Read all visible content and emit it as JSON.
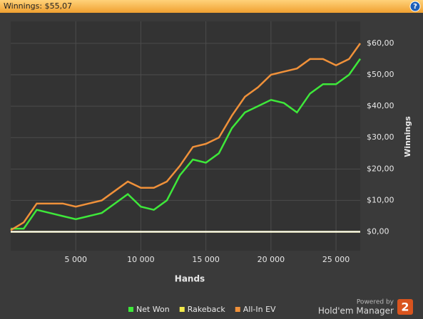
{
  "chart_data": {
    "type": "line",
    "title": "Winnings: $55,07",
    "help": "?",
    "xlabel": "Hands",
    "ylabel": "Winnings",
    "x": [
      0,
      1000,
      2000,
      3000,
      4000,
      5000,
      6000,
      7000,
      8000,
      9000,
      10000,
      11000,
      12000,
      13000,
      14000,
      15000,
      16000,
      17000,
      18000,
      19000,
      20000,
      21000,
      22000,
      23000,
      24000,
      25000,
      26000,
      26860
    ],
    "series": [
      {
        "name": "Net Won",
        "color": "#3ee83a",
        "values": [
          1,
          1,
          7,
          6,
          5,
          4,
          5,
          6,
          9,
          12,
          8,
          7,
          10,
          18,
          23,
          22,
          25,
          33,
          38,
          40,
          42,
          41,
          38,
          44,
          47,
          47,
          50,
          55.07
        ]
      },
      {
        "name": "Rakeback",
        "color": "#f2e94a",
        "values": [
          0,
          0,
          0,
          0,
          0,
          0,
          0,
          0,
          0,
          0,
          0,
          0,
          0,
          0,
          0,
          0,
          0,
          0,
          0,
          0,
          0,
          0,
          0,
          0,
          0,
          0,
          0,
          0
        ]
      },
      {
        "name": "All-In EV",
        "color": "#f0913a",
        "values": [
          0.5,
          3,
          9,
          9,
          9,
          8,
          9,
          10,
          13,
          16,
          14,
          14,
          16,
          21,
          27,
          28,
          30,
          37,
          43,
          46,
          50,
          51,
          52,
          55,
          55,
          53,
          55,
          60
        ]
      }
    ],
    "xlim": [
      0,
      26860
    ],
    "ylim": [
      -6,
      67
    ],
    "xticks": [
      {
        "value": 5000,
        "label": "5 000"
      },
      {
        "value": 10000,
        "label": "10 000"
      },
      {
        "value": 15000,
        "label": "15 000"
      },
      {
        "value": 20000,
        "label": "20 000"
      },
      {
        "value": 25000,
        "label": "25 000"
      }
    ],
    "yticks": [
      {
        "value": 0,
        "label": "$0,00"
      },
      {
        "value": 10,
        "label": "$10,00"
      },
      {
        "value": 20,
        "label": "$20,00"
      },
      {
        "value": 30,
        "label": "$30,00"
      },
      {
        "value": 40,
        "label": "$40,00"
      },
      {
        "value": 50,
        "label": "$50,00"
      },
      {
        "value": 60,
        "label": "$60,00"
      }
    ],
    "grid": true,
    "branding": {
      "powered": "Powered by",
      "product": "Hold'em Manager",
      "logo": "2"
    }
  }
}
